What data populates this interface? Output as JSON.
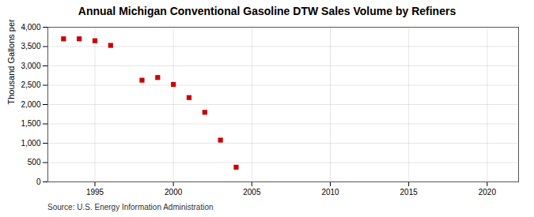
{
  "chart_data": {
    "type": "scatter",
    "title": "Annual Michigan Conventional Gasoline DTW Sales Volume by Refiners",
    "ylabel": "Thousand Gallons per Day",
    "source": "Source: U.S. Energy Information Administration",
    "x": [
      1993,
      1994,
      1995,
      1996,
      1998,
      1999,
      2000,
      2001,
      2002,
      2003,
      2004
    ],
    "values": [
      3700,
      3700,
      3650,
      3530,
      2630,
      2700,
      2520,
      2180,
      1800,
      1080,
      380
    ],
    "color": "#cc0000",
    "marker": "square",
    "xlim": [
      1992,
      2022
    ],
    "xticks": [
      1995,
      2000,
      2005,
      2010,
      2015,
      2020
    ],
    "ylim": [
      0,
      4000
    ],
    "yticks": [
      0,
      500,
      {
        "value": 1000,
        "label": "1,000"
      },
      {
        "value": 1500,
        "label": "1,500"
      },
      {
        "value": 2000,
        "label": "2,000"
      },
      {
        "value": 2500,
        "label": "2,500"
      },
      {
        "value": 3000,
        "label": "3,000"
      },
      {
        "value": 3500,
        "label": "3,500"
      },
      {
        "value": 4000,
        "label": "4,000"
      }
    ],
    "grid": true
  }
}
